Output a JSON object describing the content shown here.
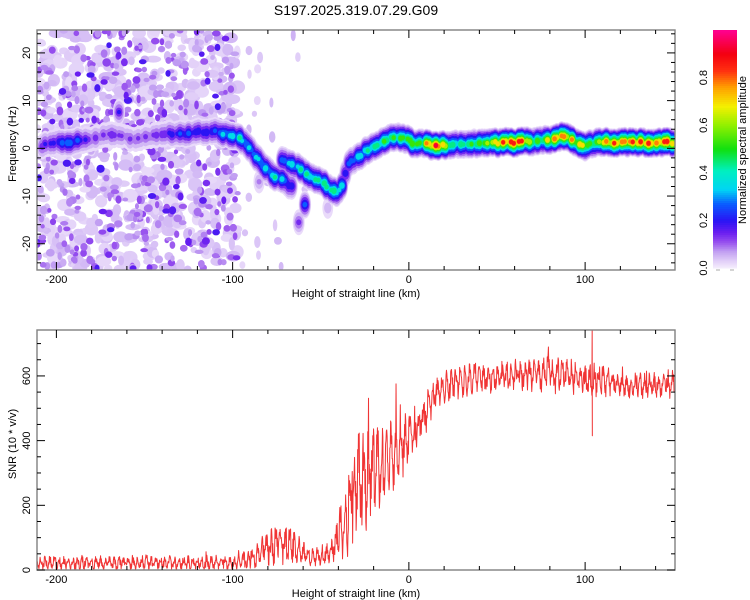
{
  "chart_data": [
    {
      "type": "heatmap",
      "title": "S197.2025.319.07.29.G09",
      "xlabel": "Height of straight line (km)",
      "ylabel": "Frequency (Hz)",
      "xlim": [
        -211,
        151
      ],
      "ylim": [
        -25.5,
        24.8
      ],
      "xticks": [
        -200,
        -100,
        0,
        100
      ],
      "xtick_labels": [
        "-200",
        "-100",
        "0",
        "100"
      ],
      "x_minor_step": 20,
      "yticks": [
        -20,
        -10,
        0,
        10,
        20
      ],
      "ytick_labels": [
        "-20",
        "-10",
        "0",
        "10",
        "20"
      ],
      "y_minor_step": 2,
      "grid": false,
      "colorbar": {
        "label": "Normalized spectral amplitude",
        "range": [
          0,
          1
        ],
        "ticks": [
          0,
          0.2,
          0.4,
          0.6,
          0.8
        ],
        "tick_labels": [
          "0.0",
          "0.2",
          "0.4",
          "0.6",
          "0.8"
        ],
        "colormap": [
          {
            "value": 0.0,
            "color": "#f6effd"
          },
          {
            "value": 0.03,
            "color": "#e2d0f8"
          },
          {
            "value": 0.07,
            "color": "#c2a0f2"
          },
          {
            "value": 0.11,
            "color": "#9750ee"
          },
          {
            "value": 0.15,
            "color": "#6a1ef0"
          },
          {
            "value": 0.2,
            "color": "#2a14f4"
          },
          {
            "value": 0.27,
            "color": "#0a5cff"
          },
          {
            "value": 0.33,
            "color": "#00d4f4"
          },
          {
            "value": 0.41,
            "color": "#00f0c0"
          },
          {
            "value": 0.5,
            "color": "#10e010"
          },
          {
            "value": 0.6,
            "color": "#90f000"
          },
          {
            "value": 0.68,
            "color": "#f4f000"
          },
          {
            "value": 0.76,
            "color": "#ffa000"
          },
          {
            "value": 0.83,
            "color": "#ff3010"
          },
          {
            "value": 0.9,
            "color": "#f40010"
          },
          {
            "value": 1.0,
            "color": "#ff0090"
          }
        ]
      },
      "ridge_main": {
        "x": [
          -208,
          -200,
          -195,
          -188,
          -182,
          -175,
          -170,
          -163,
          -155,
          -148,
          -140,
          -133,
          -125,
          -118,
          -110,
          -104,
          -100,
          -96,
          -92,
          -88,
          -84,
          -80,
          -76,
          -72,
          -68,
          -65
        ],
        "freq": [
          0.5,
          1.5,
          1.0,
          1.5,
          2.0,
          2.5,
          3.0,
          2.5,
          2.0,
          2.5,
          3.0,
          3.0,
          3.0,
          3.5,
          3.5,
          3.0,
          2.7,
          2.0,
          1.0,
          -1.0,
          -3.0,
          -4.5,
          -6.0,
          -6.5,
          -7.6,
          -8.5
        ],
        "amp": [
          0.2,
          0.25,
          0.35,
          0.3,
          0.2,
          0.15,
          0.2,
          0.15,
          0.15,
          0.15,
          0.2,
          0.25,
          0.3,
          0.25,
          0.3,
          0.4,
          0.45,
          0.45,
          0.4,
          0.4,
          0.45,
          0.4,
          0.45,
          0.4,
          0.35,
          0.2
        ]
      },
      "ridge_branch": {
        "x": [
          -72,
          -68,
          -63,
          -58,
          -53,
          -48,
          -44,
          -41,
          -38,
          -36,
          -34,
          -30,
          -26,
          -22,
          -18,
          -14,
          -10,
          -6,
          -2,
          2,
          6,
          10,
          14,
          18,
          22,
          28,
          34,
          40,
          46,
          52,
          58,
          64,
          70,
          76,
          80,
          84,
          88,
          91,
          94,
          97,
          100,
          104,
          108,
          112,
          118,
          124,
          130,
          136,
          142,
          148,
          151
        ],
        "freq": [
          -2.5,
          -3.3,
          -4.0,
          -5.5,
          -6.5,
          -7.5,
          -8.7,
          -9.5,
          -8.0,
          -5.0,
          -3.3,
          -2.0,
          -1.0,
          0.0,
          0.8,
          1.5,
          2.3,
          2.5,
          2.0,
          1.2,
          1.0,
          0.8,
          0.6,
          0.6,
          0.7,
          0.8,
          1.0,
          1.0,
          1.1,
          1.2,
          1.3,
          1.3,
          1.4,
          1.6,
          1.8,
          2.3,
          2.7,
          2.2,
          1.3,
          0.6,
          0.5,
          0.9,
          1.2,
          1.2,
          1.2,
          1.2,
          1.2,
          1.2,
          1.2,
          1.2,
          1.2
        ],
        "amp": [
          0.3,
          0.4,
          0.45,
          0.5,
          0.5,
          0.5,
          0.55,
          0.5,
          0.4,
          0.35,
          0.3,
          0.4,
          0.45,
          0.5,
          0.55,
          0.6,
          0.55,
          0.6,
          0.6,
          0.65,
          0.6,
          0.8,
          0.9,
          0.9,
          0.6,
          0.5,
          0.55,
          0.6,
          0.7,
          0.85,
          0.9,
          0.9,
          0.65,
          0.6,
          0.75,
          0.85,
          0.9,
          0.85,
          0.75,
          0.8,
          0.75,
          0.6,
          0.7,
          0.85,
          0.9,
          0.88,
          0.85,
          0.9,
          0.9,
          0.92,
          0.92
        ]
      },
      "isolated_peaks": {
        "x": [
          -59,
          -62.5,
          -46,
          -164.5,
          -85
        ],
        "freq": [
          -11.8,
          -15.5,
          -12.5,
          7.6,
          -7.0
        ],
        "amp": [
          0.3,
          0.16,
          0.08,
          0.2,
          0.1
        ]
      },
      "background_noise": {
        "x_range": [
          -211,
          -97
        ],
        "freq_range": [
          -25.5,
          24.8
        ],
        "amp_range": [
          0.02,
          0.18
        ]
      },
      "sparse_noise": {
        "x_range": [
          -97,
          -58
        ],
        "freq_range": [
          -25.5,
          24.8
        ],
        "amp_range": [
          0.02,
          0.06
        ]
      }
    },
    {
      "type": "line",
      "xlabel": "Height of straight line (km)",
      "ylabel": "SNR (10 * v/v)",
      "xlim": [
        -211,
        151
      ],
      "ylim": [
        0,
        742
      ],
      "xticks": [
        -200,
        -100,
        0,
        100
      ],
      "xtick_labels": [
        "-200",
        "-100",
        "0",
        "100"
      ],
      "x_minor_step": 20,
      "yticks": [
        0,
        200,
        400,
        600
      ],
      "ytick_labels": [
        "0",
        "200",
        "400",
        "600"
      ],
      "y_minor_step": 50,
      "grid": false,
      "series": [
        {
          "name": "SNR",
          "color": "#f03434",
          "x": [
            -211,
            -100,
            -95,
            -88,
            -80,
            -74,
            -68,
            -62,
            -55,
            -48,
            -42,
            -38,
            -34,
            -30,
            -25,
            -20,
            -15,
            -10,
            -5,
            0,
            5,
            10,
            15,
            20,
            30,
            40,
            50,
            60,
            70,
            80,
            90,
            100,
            110,
            120,
            130,
            140,
            151
          ],
          "mean": [
            22,
            22,
            25,
            40,
            70,
            85,
            80,
            55,
            40,
            45,
            70,
            130,
            200,
            260,
            280,
            320,
            330,
            360,
            370,
            400,
            440,
            490,
            540,
            565,
            585,
            590,
            595,
            600,
            605,
            610,
            600,
            590,
            585,
            570,
            570,
            570,
            575
          ],
          "spread": [
            28,
            28,
            32,
            50,
            70,
            85,
            75,
            55,
            40,
            40,
            60,
            120,
            190,
            210,
            200,
            170,
            150,
            150,
            130,
            110,
            90,
            75,
            65,
            60,
            60,
            60,
            60,
            65,
            70,
            80,
            70,
            65,
            60,
            55,
            55,
            55,
            55
          ]
        }
      ],
      "spike": {
        "x": 104,
        "min": 415,
        "max": 742
      }
    }
  ]
}
